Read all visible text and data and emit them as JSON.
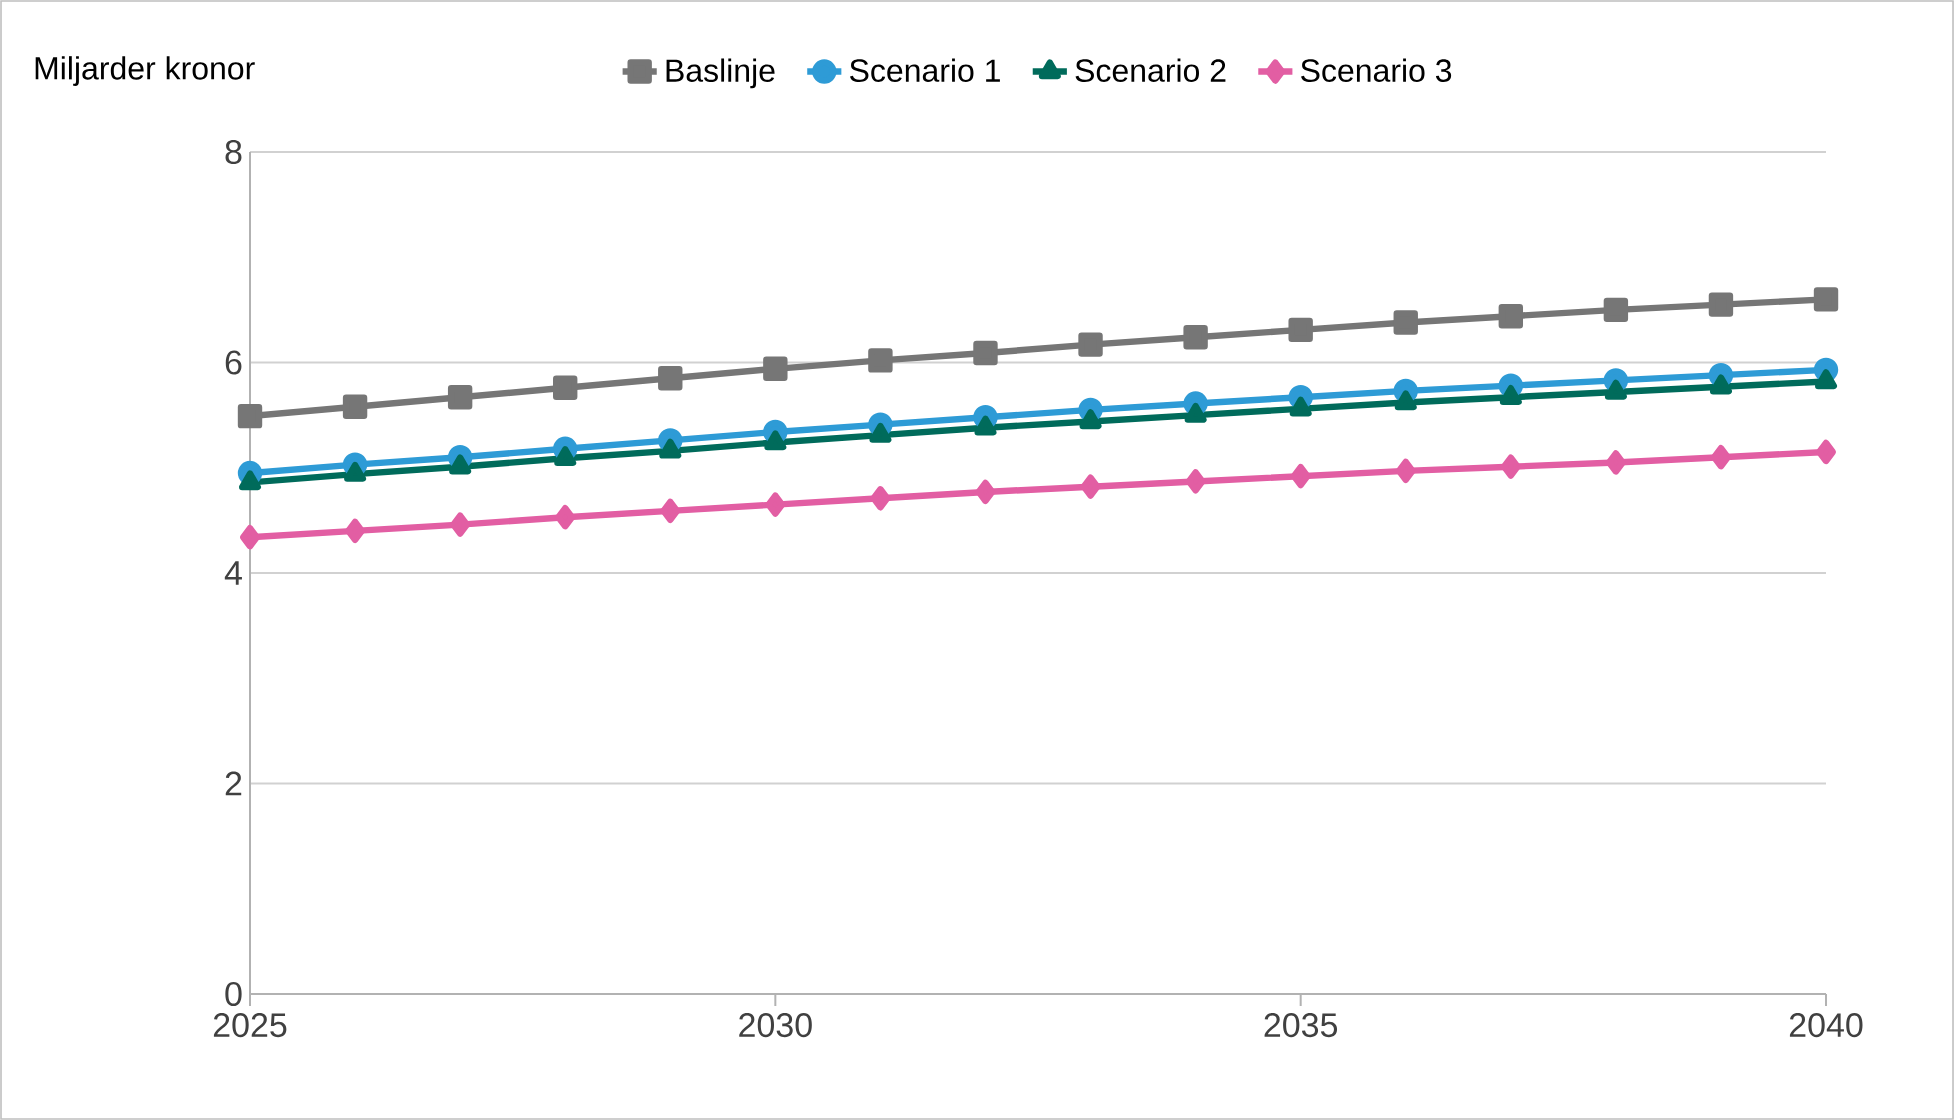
{
  "chart_data": {
    "type": "line",
    "ylabel": "Miljarder kronor",
    "x": [
      2025,
      2026,
      2027,
      2028,
      2029,
      2030,
      2031,
      2032,
      2033,
      2034,
      2035,
      2036,
      2037,
      2038,
      2039,
      2040
    ],
    "series": [
      {
        "name": "Baslinje",
        "color": "#767676",
        "marker": "square",
        "values": [
          5.49,
          5.58,
          5.67,
          5.76,
          5.85,
          5.94,
          6.02,
          6.09,
          6.17,
          6.24,
          6.31,
          6.38,
          6.44,
          6.5,
          6.55,
          6.6
        ]
      },
      {
        "name": "Scenario 1",
        "color": "#2e9bd6",
        "marker": "circle",
        "values": [
          4.95,
          5.03,
          5.1,
          5.18,
          5.26,
          5.34,
          5.41,
          5.48,
          5.55,
          5.61,
          5.67,
          5.73,
          5.78,
          5.83,
          5.88,
          5.93
        ]
      },
      {
        "name": "Scenario 2",
        "color": "#006b5b",
        "marker": "triangle",
        "values": [
          4.86,
          4.94,
          5.01,
          5.09,
          5.16,
          5.24,
          5.31,
          5.38,
          5.44,
          5.5,
          5.56,
          5.62,
          5.67,
          5.72,
          5.77,
          5.82
        ]
      },
      {
        "name": "Scenario 3",
        "color": "#e25ea3",
        "marker": "diamond",
        "values": [
          4.34,
          4.4,
          4.46,
          4.53,
          4.59,
          4.65,
          4.71,
          4.77,
          4.82,
          4.87,
          4.92,
          4.97,
          5.01,
          5.05,
          5.1,
          5.15
        ]
      }
    ],
    "xlim": [
      2025,
      2040
    ],
    "xticks": [
      2025,
      2030,
      2035,
      2040
    ],
    "ylim": [
      0,
      8
    ],
    "yticks": [
      0,
      2,
      4,
      6,
      8
    ],
    "grid": "y",
    "legend": "top",
    "line_style": "solid"
  }
}
